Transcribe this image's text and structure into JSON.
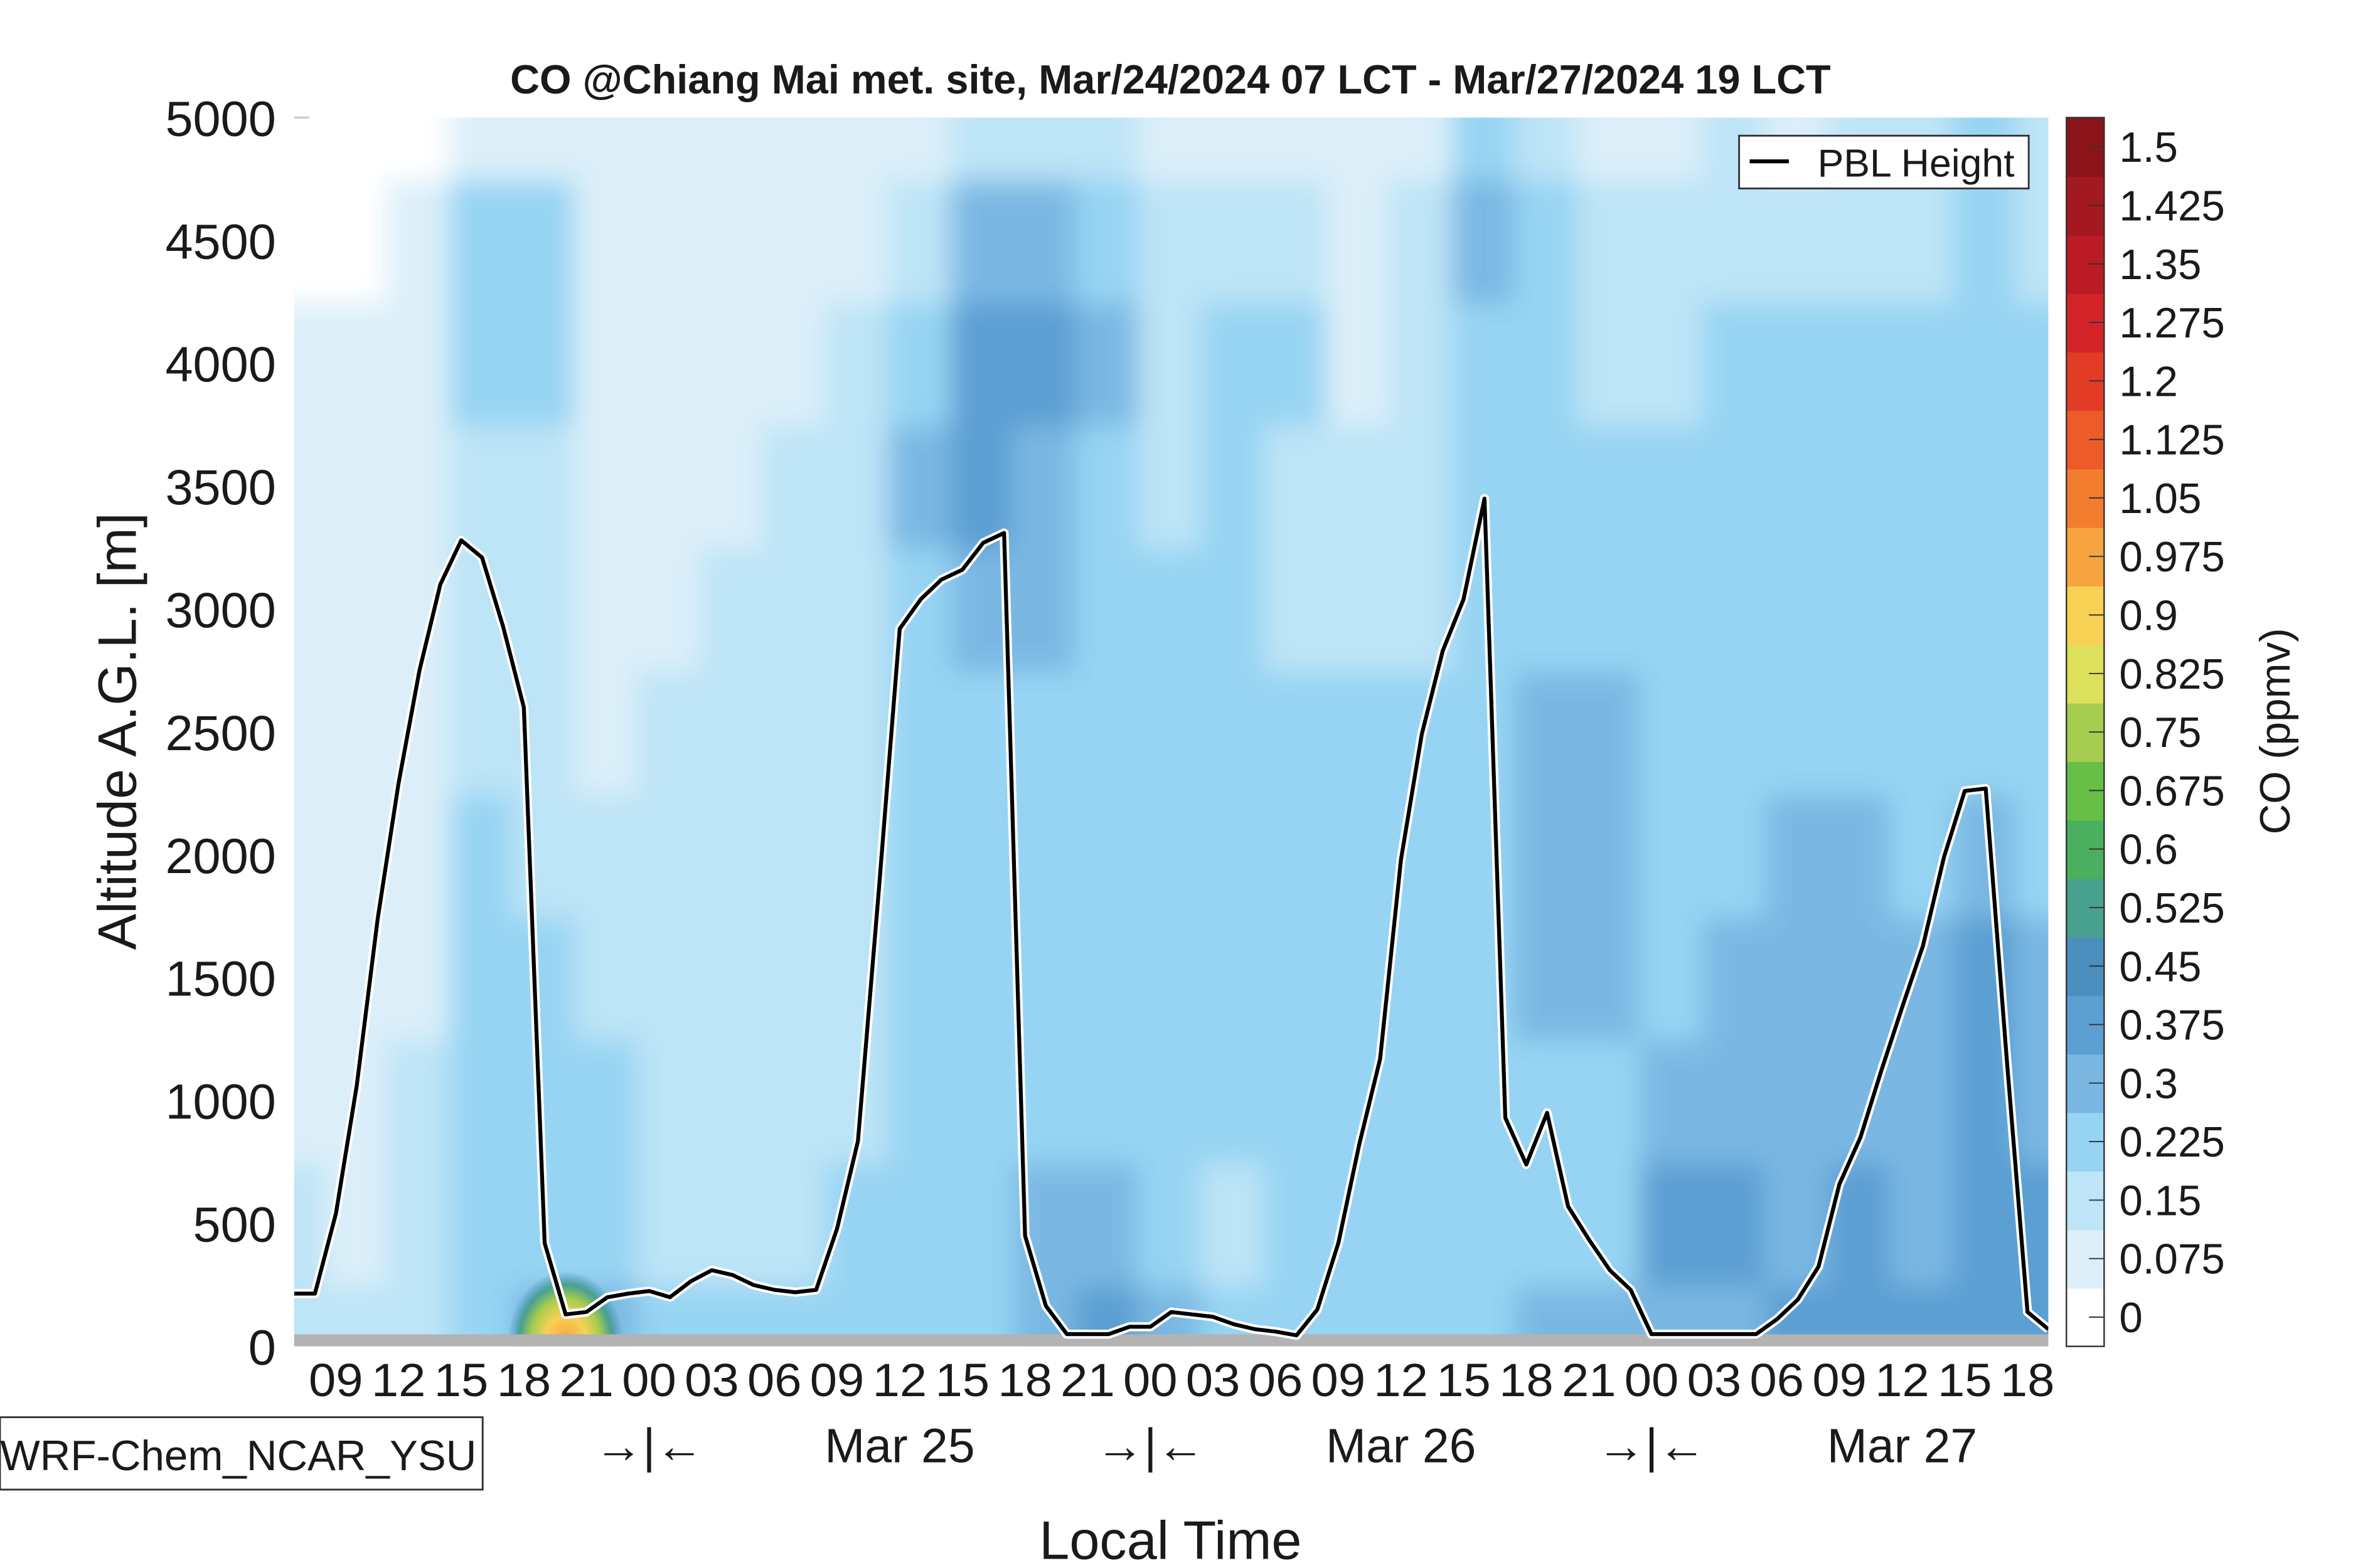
{
  "chart_data": {
    "type": "heatmap",
    "title": "CO @Chiang Mai met. site, Mar/24/2024 07 LCT - Mar/27/2024 19 LCT",
    "xlabel": "Local Time",
    "ylabel": "Altitude A.G.L. [m]",
    "colorbar_label": "CO (ppmv)",
    "model_label": "WRF-Chem_NCAR_YSU",
    "legend": {
      "entries": [
        "PBL Height"
      ],
      "placement": "top-right"
    },
    "hour_range": [
      0,
      84
    ],
    "ylim": [
      0,
      5000
    ],
    "yticks": [
      "0",
      "500",
      "1000",
      "1500",
      "2000",
      "2500",
      "3000",
      "3500",
      "4000",
      "4500",
      "5000"
    ],
    "xtick_hours": [
      2,
      5,
      8,
      11,
      14,
      17,
      20,
      23,
      26,
      29,
      32,
      35,
      38,
      41,
      44,
      47,
      50,
      53,
      56,
      59,
      62,
      65,
      68,
      71,
      74,
      77,
      80,
      83
    ],
    "xtick_labels": [
      "09",
      "12",
      "15",
      "18",
      "21",
      "00",
      "03",
      "06",
      "09",
      "12",
      "15",
      "18",
      "21",
      "00",
      "03",
      "06",
      "09",
      "12",
      "15",
      "18",
      "21",
      "00",
      "03",
      "06",
      "09",
      "12",
      "15",
      "18"
    ],
    "day_markers": [
      {
        "hour": 17,
        "label": "→|←"
      },
      {
        "hour": 29,
        "label": "Mar 25"
      },
      {
        "hour": 41,
        "label": "→|←"
      },
      {
        "hour": 53,
        "label": "Mar 26"
      },
      {
        "hour": 65,
        "label": "→|←"
      },
      {
        "hour": 77,
        "label": "Mar 27"
      }
    ],
    "colorbar": {
      "levels": [
        "0",
        "0.075",
        "0.15",
        "0.225",
        "0.3",
        "0.375",
        "0.45",
        "0.525",
        "0.6",
        "0.675",
        "0.75",
        "0.825",
        "0.9",
        "0.975",
        "1.05",
        "1.125",
        "1.2",
        "1.275",
        "1.35",
        "1.425",
        "1.5"
      ],
      "colors": [
        "#ffffff",
        "#dceff9",
        "#bde4f7",
        "#97d4f3",
        "#7ab8e3",
        "#5b9fd3",
        "#4a8fbd",
        "#48a08f",
        "#4aaf5e",
        "#67bf48",
        "#a5cd4f",
        "#dde05a",
        "#f7d154",
        "#f6a43f",
        "#f37d2f",
        "#ed5b29",
        "#e23c26",
        "#d42428",
        "#bb1b24",
        "#a4181f",
        "#8b1418"
      ]
    },
    "co_field": {
      "hours": [
        0,
        3,
        6,
        9,
        12,
        15,
        18,
        21,
        24,
        27,
        30,
        33,
        36,
        39,
        42,
        45,
        48,
        51,
        54,
        57,
        60,
        63,
        66,
        69,
        72,
        75,
        78,
        81,
        84
      ],
      "altitudes": [
        0,
        500,
        1000,
        1500,
        2000,
        2500,
        3000,
        3500,
        4000,
        4500,
        5000
      ],
      "values_by_hour": [
        [
          0.18,
          0.18,
          0.1,
          0.1,
          0.1,
          0.1,
          0.1,
          0.1,
          0.1,
          0.05,
          0.05
        ],
        [
          0.18,
          0.1,
          0.1,
          0.1,
          0.1,
          0.1,
          0.1,
          0.1,
          0.1,
          0.05,
          0.05
        ],
        [
          0.18,
          0.18,
          0.18,
          0.1,
          0.1,
          0.1,
          0.1,
          0.1,
          0.1,
          0.1,
          0.05
        ],
        [
          0.26,
          0.26,
          0.26,
          0.26,
          0.26,
          0.18,
          0.18,
          0.18,
          0.26,
          0.26,
          0.1
        ],
        [
          0.33,
          0.26,
          0.26,
          0.26,
          0.18,
          0.18,
          0.18,
          0.18,
          0.26,
          0.26,
          0.1
        ],
        [
          0.33,
          0.26,
          0.26,
          0.18,
          0.18,
          0.1,
          0.1,
          0.1,
          0.1,
          0.1,
          0.1
        ],
        [
          0.26,
          0.18,
          0.18,
          0.18,
          0.18,
          0.18,
          0.1,
          0.1,
          0.1,
          0.1,
          0.1
        ],
        [
          0.26,
          0.18,
          0.18,
          0.18,
          0.18,
          0.18,
          0.18,
          0.1,
          0.1,
          0.1,
          0.1
        ],
        [
          0.26,
          0.18,
          0.18,
          0.18,
          0.18,
          0.18,
          0.18,
          0.18,
          0.1,
          0.1,
          0.1
        ],
        [
          0.26,
          0.26,
          0.18,
          0.18,
          0.18,
          0.18,
          0.18,
          0.18,
          0.18,
          0.1,
          0.1
        ],
        [
          0.26,
          0.26,
          0.26,
          0.26,
          0.26,
          0.26,
          0.26,
          0.33,
          0.26,
          0.18,
          0.1
        ],
        [
          0.26,
          0.26,
          0.26,
          0.26,
          0.26,
          0.26,
          0.33,
          0.4,
          0.4,
          0.33,
          0.18
        ],
        [
          0.33,
          0.33,
          0.26,
          0.26,
          0.26,
          0.26,
          0.33,
          0.33,
          0.4,
          0.33,
          0.18
        ],
        [
          0.4,
          0.33,
          0.26,
          0.26,
          0.26,
          0.26,
          0.26,
          0.26,
          0.33,
          0.26,
          0.18
        ],
        [
          0.33,
          0.26,
          0.26,
          0.26,
          0.26,
          0.26,
          0.26,
          0.18,
          0.18,
          0.18,
          0.1
        ],
        [
          0.26,
          0.18,
          0.26,
          0.26,
          0.26,
          0.26,
          0.26,
          0.26,
          0.26,
          0.18,
          0.1
        ],
        [
          0.26,
          0.26,
          0.26,
          0.26,
          0.26,
          0.26,
          0.18,
          0.18,
          0.26,
          0.18,
          0.1
        ],
        [
          0.26,
          0.26,
          0.26,
          0.26,
          0.26,
          0.26,
          0.18,
          0.18,
          0.1,
          0.1,
          0.1
        ],
        [
          0.26,
          0.26,
          0.26,
          0.26,
          0.26,
          0.26,
          0.18,
          0.18,
          0.18,
          0.18,
          0.1
        ],
        [
          0.26,
          0.26,
          0.26,
          0.26,
          0.26,
          0.26,
          0.26,
          0.26,
          0.26,
          0.33,
          0.26
        ],
        [
          0.33,
          0.26,
          0.26,
          0.33,
          0.33,
          0.33,
          0.26,
          0.26,
          0.26,
          0.26,
          0.18
        ],
        [
          0.33,
          0.26,
          0.26,
          0.33,
          0.33,
          0.33,
          0.26,
          0.26,
          0.18,
          0.18,
          0.1
        ],
        [
          0.33,
          0.4,
          0.33,
          0.26,
          0.26,
          0.26,
          0.26,
          0.26,
          0.18,
          0.18,
          0.1
        ],
        [
          0.33,
          0.4,
          0.33,
          0.33,
          0.26,
          0.26,
          0.26,
          0.26,
          0.26,
          0.18,
          0.18
        ],
        [
          0.4,
          0.33,
          0.33,
          0.33,
          0.33,
          0.26,
          0.26,
          0.26,
          0.26,
          0.18,
          0.1
        ],
        [
          0.4,
          0.4,
          0.33,
          0.33,
          0.33,
          0.26,
          0.26,
          0.26,
          0.26,
          0.18,
          0.18
        ],
        [
          0.4,
          0.33,
          0.33,
          0.33,
          0.26,
          0.26,
          0.26,
          0.26,
          0.26,
          0.18,
          0.18
        ],
        [
          0.4,
          0.4,
          0.4,
          0.4,
          0.33,
          0.26,
          0.26,
          0.26,
          0.26,
          0.26,
          0.26
        ],
        [
          0.4,
          0.4,
          0.33,
          0.33,
          0.26,
          0.26,
          0.26,
          0.26,
          0.26,
          0.18,
          0.18
        ]
      ],
      "hotspots": [
        {
          "hour": 13,
          "altitude": 30,
          "value": 0.95
        }
      ]
    },
    "series": [
      {
        "name": "PBL Height",
        "color": "#000000",
        "hours": [
          0,
          1,
          2,
          3,
          4,
          5,
          6,
          7,
          8,
          9,
          10,
          11,
          12,
          13,
          14,
          15,
          16,
          17,
          18,
          19,
          20,
          21,
          22,
          23,
          24,
          25,
          26,
          27,
          28,
          29,
          30,
          31,
          32,
          33,
          34,
          35,
          36,
          37,
          38,
          39,
          40,
          41,
          42,
          43,
          44,
          45,
          46,
          47,
          48,
          49,
          50,
          51,
          52,
          53,
          54,
          55,
          56,
          57,
          58,
          59,
          60,
          61,
          62,
          63,
          64,
          65,
          66,
          67,
          68,
          69,
          70,
          71,
          72,
          73,
          74,
          75,
          76,
          77,
          78,
          79,
          80,
          81,
          82,
          83,
          84
        ],
        "values": [
          215,
          215,
          540,
          1060,
          1740,
          2290,
          2750,
          3100,
          3280,
          3210,
          2930,
          2600,
          420,
          130,
          140,
          200,
          215,
          225,
          200,
          265,
          310,
          290,
          250,
          230,
          220,
          230,
          480,
          835,
          1860,
          2920,
          3040,
          3120,
          3160,
          3270,
          3310,
          450,
          165,
          50,
          50,
          50,
          80,
          80,
          140,
          130,
          120,
          90,
          70,
          60,
          45,
          150,
          420,
          820,
          1170,
          1980,
          2490,
          2830,
          3040,
          3450,
          930,
          740,
          950,
          570,
          435,
          310,
          230,
          50,
          50,
          50,
          50,
          50,
          50,
          110,
          190,
          325,
          660,
          850,
          1120,
          1380,
          1630,
          1990,
          2260,
          2270,
          1180,
          140,
          70
        ]
      }
    ]
  }
}
